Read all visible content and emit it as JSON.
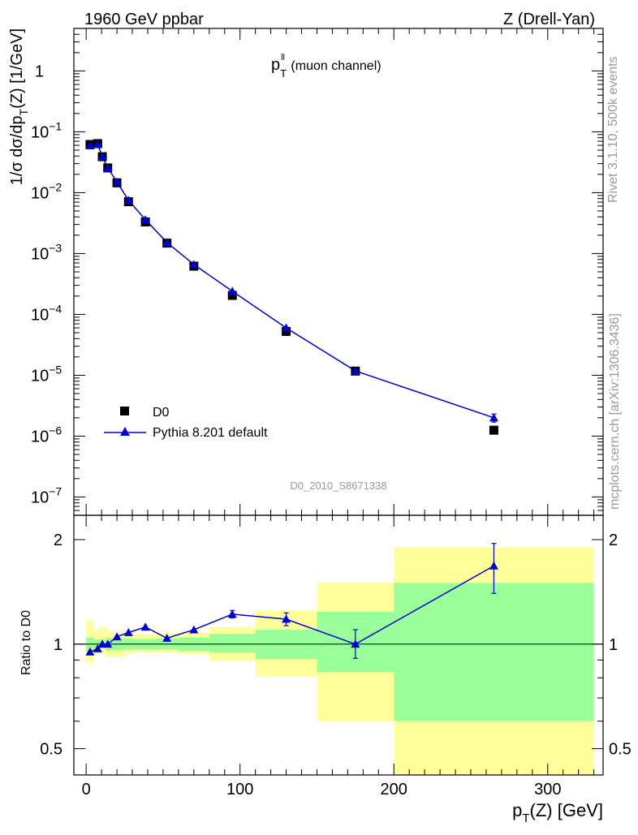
{
  "header": {
    "left": "1960 GeV ppbar",
    "right": "Z (Drell-Yan)",
    "side_rivet": "Rivet 3.1.10,  500k events",
    "side_mcplots": "mcplots.cern.ch [arXiv:1306.3436]"
  },
  "chart_data": [
    {
      "type": "scatter",
      "title_main": "p",
      "title_sub": "T",
      "title_sup": "ll",
      "title_tail": " (muon channel)",
      "watermark": "D0_2010_S8671338",
      "ylabel": "1/σ  dσ/dp_T(Z) [1/GeV]",
      "ylabel_parts": [
        "1/σ  dσ/dp",
        "T",
        "(Z) [1/GeV]"
      ],
      "yscale": "log",
      "ylim": [
        5e-08,
        5
      ],
      "xlim": [
        -8,
        336
      ],
      "ytick_labels": [
        {
          "value": 1e-07,
          "base": "10",
          "exp": "−7"
        },
        {
          "value": 1e-06,
          "base": "10",
          "exp": "−6"
        },
        {
          "value": 1e-05,
          "base": "10",
          "exp": "−5"
        },
        {
          "value": 0.0001,
          "base": "10",
          "exp": "−4"
        },
        {
          "value": 0.001,
          "base": "10",
          "exp": "−3"
        },
        {
          "value": 0.01,
          "base": "10",
          "exp": "−2"
        },
        {
          "value": 0.1,
          "base": "10",
          "exp": "−1"
        },
        {
          "value": 1,
          "base": "1",
          "exp": ""
        }
      ],
      "legend_position": "bottom-left",
      "series": [
        {
          "name": "D0",
          "marker": "square",
          "color": "#000000",
          "x": [
            2.5,
            7.5,
            10.5,
            14,
            20,
            27.5,
            38.5,
            52.5,
            70,
            95,
            130,
            175,
            265
          ],
          "y": [
            0.062,
            0.064,
            0.039,
            0.0255,
            0.0145,
            0.0071,
            0.0033,
            0.00148,
            0.00062,
            0.000205,
            5.25e-05,
            1.17e-05,
            1.25e-06
          ]
        },
        {
          "name": "Pythia 8.201 default",
          "marker": "triangle",
          "color": "#0000dd",
          "x": [
            2.5,
            7.5,
            10.5,
            14,
            20,
            27.5,
            38.5,
            52.5,
            70,
            95,
            130,
            175,
            265
          ],
          "y": [
            0.059,
            0.062,
            0.039,
            0.0255,
            0.015,
            0.0075,
            0.0036,
            0.00152,
            0.00066,
            0.00024,
            6e-05,
            1.18e-05,
            2e-06
          ],
          "yerr_low": [
            0,
            0,
            0,
            0,
            0,
            0,
            0,
            0,
            0,
            0,
            0,
            0,
            3e-07
          ],
          "yerr_high": [
            0,
            0,
            0,
            0,
            0,
            0,
            0,
            0,
            0,
            0,
            0,
            0,
            3e-07
          ]
        }
      ]
    },
    {
      "type": "scatter",
      "ylabel": "Ratio to D0",
      "xlabel_parts": [
        "p",
        "T",
        "(Z) [GeV]"
      ],
      "yscale": "log",
      "ylim": [
        0.42,
        2.35
      ],
      "xlim": [
        -8,
        336
      ],
      "ytick_labels": [
        {
          "value": 0.5,
          "label": "0.5"
        },
        {
          "value": 1,
          "label": "1"
        },
        {
          "value": 2,
          "label": "2"
        }
      ],
      "xtick_labels": [
        {
          "value": 0,
          "label": "0"
        },
        {
          "value": 100,
          "label": "100"
        },
        {
          "value": 200,
          "label": "200"
        },
        {
          "value": 300,
          "label": "300"
        }
      ],
      "uncertainty_bands": {
        "edges": [
          0,
          5,
          8,
          13,
          15,
          25,
          30,
          45,
          60,
          80,
          110,
          150,
          200,
          330
        ],
        "green_low": [
          0.955,
          0.975,
          0.975,
          0.955,
          0.96,
          0.965,
          0.965,
          0.965,
          0.955,
          0.945,
          0.905,
          0.83,
          0.6
        ],
        "green_high": [
          1.045,
          1.03,
          1.03,
          1.045,
          1.04,
          1.04,
          1.035,
          1.04,
          1.045,
          1.07,
          1.1,
          1.24,
          1.5
        ],
        "yellow_low": [
          0.885,
          0.94,
          0.935,
          0.915,
          0.92,
          0.94,
          0.945,
          0.945,
          0.935,
          0.895,
          0.81,
          0.6,
          0.3
        ],
        "yellow_high": [
          1.17,
          1.095,
          1.12,
          1.1,
          1.08,
          1.075,
          1.07,
          1.075,
          1.08,
          1.12,
          1.25,
          1.5,
          1.9
        ]
      },
      "series": [
        {
          "name": "Pythia 8.201 default",
          "marker": "triangle",
          "color": "#0000dd",
          "x": [
            2.5,
            7.5,
            10.5,
            14,
            20,
            27.5,
            38.5,
            52.5,
            70,
            95,
            130,
            175,
            265
          ],
          "y": [
            0.95,
            0.97,
            1.0,
            1.0,
            1.05,
            1.08,
            1.12,
            1.04,
            1.1,
            1.22,
            1.18,
            1.0,
            1.68
          ],
          "yerr_low": [
            0.005,
            0.005,
            0.005,
            0.005,
            0.01,
            0.01,
            0.015,
            0.015,
            0.02,
            0.03,
            0.05,
            0.09,
            0.28
          ],
          "yerr_high": [
            0.005,
            0.005,
            0.005,
            0.005,
            0.01,
            0.01,
            0.015,
            0.015,
            0.02,
            0.03,
            0.05,
            0.1,
            0.27
          ]
        }
      ]
    }
  ]
}
